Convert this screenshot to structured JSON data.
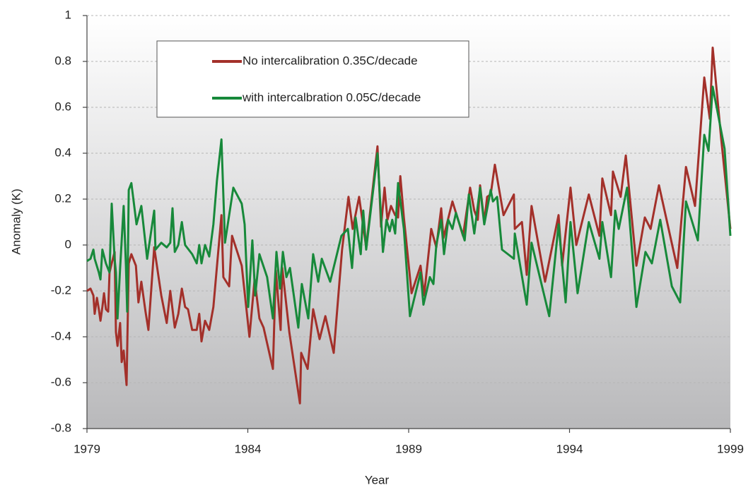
{
  "chart_data": {
    "type": "line",
    "xlabel": "Year",
    "ylabel": "Anomaly (K)",
    "xlim": [
      1979,
      1999
    ],
    "xticks": [
      1979,
      1984,
      1989,
      1994,
      1999
    ],
    "ylim": [
      -0.8,
      1
    ],
    "yticks": [
      -0.8,
      -0.6,
      -0.4,
      -0.2,
      0,
      0.2,
      0.4,
      0.6,
      0.8,
      1
    ],
    "grid": true,
    "legend": "top",
    "series": [
      {
        "name": "No intercalibration 0.35C/decade",
        "color": "#a3302a",
        "x": [
          1979.0,
          1979.11,
          1979.2,
          1979.24,
          1979.31,
          1979.37,
          1979.42,
          1979.48,
          1979.53,
          1979.59,
          1979.66,
          1979.7,
          1979.77,
          1979.86,
          1979.9,
          1979.95,
          1980.03,
          1980.08,
          1980.14,
          1980.23,
          1980.3,
          1980.38,
          1980.52,
          1980.6,
          1980.69,
          1980.82,
          1980.91,
          1981.09,
          1981.31,
          1981.48,
          1981.59,
          1981.73,
          1981.84,
          1981.95,
          1982.05,
          1982.14,
          1982.27,
          1982.41,
          1982.49,
          1982.56,
          1982.67,
          1982.8,
          1982.93,
          1983.18,
          1983.24,
          1983.42,
          1983.51,
          1983.81,
          1984.05,
          1984.21,
          1984.36,
          1984.49,
          1984.78,
          1984.87,
          1985.02,
          1985.07,
          1985.29,
          1985.62,
          1985.66,
          1985.86,
          1986.03,
          1986.23,
          1986.41,
          1986.67,
          1986.93,
          1987.13,
          1987.26,
          1987.46,
          1987.68,
          1988.03,
          1988.14,
          1988.25,
          1988.34,
          1988.45,
          1988.58,
          1988.67,
          1988.74,
          1988.85,
          1989.09,
          1989.37,
          1989.48,
          1989.7,
          1989.86,
          1990.01,
          1990.08,
          1990.36,
          1990.69,
          1990.91,
          1991.04,
          1991.15,
          1991.22,
          1991.35,
          1991.44,
          1991.55,
          1991.68,
          1991.95,
          1992.27,
          1992.3,
          1992.52,
          1992.67,
          1992.82,
          1993.24,
          1993.66,
          1993.77,
          1994.03,
          1994.21,
          1994.6,
          1994.93,
          1995.02,
          1995.29,
          1995.35,
          1995.59,
          1995.75,
          1996.08,
          1996.34,
          1996.52,
          1996.78,
          1997.35,
          1997.62,
          1997.9,
          1998.19,
          1998.36,
          1998.45,
          1998.71,
          1999.0
        ],
        "values": [
          -0.2,
          -0.19,
          -0.22,
          -0.3,
          -0.23,
          -0.28,
          -0.33,
          -0.27,
          -0.21,
          -0.28,
          -0.29,
          -0.12,
          -0.08,
          -0.03,
          -0.38,
          -0.44,
          -0.34,
          -0.51,
          -0.46,
          -0.61,
          -0.08,
          -0.04,
          -0.09,
          -0.25,
          -0.16,
          -0.29,
          -0.37,
          -0.01,
          -0.22,
          -0.34,
          -0.2,
          -0.36,
          -0.3,
          -0.19,
          -0.27,
          -0.28,
          -0.37,
          -0.37,
          -0.3,
          -0.42,
          -0.33,
          -0.37,
          -0.27,
          0.13,
          -0.14,
          -0.18,
          0.04,
          -0.09,
          -0.4,
          -0.15,
          -0.32,
          -0.36,
          -0.54,
          -0.11,
          -0.37,
          -0.1,
          -0.38,
          -0.69,
          -0.47,
          -0.54,
          -0.28,
          -0.41,
          -0.31,
          -0.47,
          -0.02,
          0.21,
          0.07,
          0.21,
          -0.01,
          0.43,
          0.08,
          0.25,
          0.11,
          0.17,
          0.13,
          0.12,
          0.3,
          0.12,
          -0.21,
          -0.09,
          -0.22,
          0.07,
          -0.01,
          0.16,
          0.03,
          0.19,
          0.04,
          0.25,
          0.15,
          0.11,
          0.26,
          0.1,
          0.21,
          0.22,
          0.35,
          0.13,
          0.22,
          0.07,
          0.1,
          -0.13,
          0.17,
          -0.16,
          0.13,
          -0.09,
          0.25,
          0.0,
          0.22,
          0.04,
          0.29,
          0.13,
          0.32,
          0.21,
          0.39,
          -0.09,
          0.12,
          0.07,
          0.26,
          -0.1,
          0.34,
          0.17,
          0.73,
          0.55,
          0.86,
          0.47,
          0.07
        ]
      },
      {
        "name": "with intercalbration 0.05C/decade",
        "color": "#17893a",
        "x": [
          1979.0,
          1979.11,
          1979.2,
          1979.24,
          1979.37,
          1979.42,
          1979.48,
          1979.59,
          1979.7,
          1979.77,
          1979.86,
          1979.9,
          1979.95,
          1980.03,
          1980.14,
          1980.21,
          1980.25,
          1980.3,
          1980.38,
          1980.54,
          1980.69,
          1980.87,
          1981.09,
          1981.13,
          1981.31,
          1981.48,
          1981.59,
          1981.66,
          1981.73,
          1981.84,
          1981.95,
          1982.05,
          1982.27,
          1982.41,
          1982.49,
          1982.56,
          1982.67,
          1982.8,
          1982.93,
          1983.04,
          1983.18,
          1983.29,
          1983.55,
          1983.81,
          1983.9,
          1984.01,
          1984.14,
          1984.23,
          1984.36,
          1984.6,
          1984.78,
          1984.89,
          1985.0,
          1985.09,
          1985.2,
          1985.31,
          1985.57,
          1985.68,
          1985.88,
          1986.03,
          1986.19,
          1986.3,
          1986.56,
          1986.91,
          1987.11,
          1987.24,
          1987.35,
          1987.51,
          1987.59,
          1987.68,
          1988.03,
          1988.2,
          1988.31,
          1988.41,
          1988.49,
          1988.58,
          1988.67,
          1988.85,
          1989.04,
          1989.37,
          1989.46,
          1989.66,
          1989.77,
          1989.86,
          1990.01,
          1990.1,
          1990.23,
          1990.36,
          1990.47,
          1990.74,
          1990.87,
          1991.04,
          1991.22,
          1991.35,
          1991.55,
          1991.62,
          1991.75,
          1991.9,
          1992.27,
          1992.3,
          1992.67,
          1992.82,
          1993.37,
          1993.66,
          1993.88,
          1994.03,
          1994.25,
          1994.6,
          1994.93,
          1995.02,
          1995.29,
          1995.42,
          1995.53,
          1995.79,
          1996.08,
          1996.36,
          1996.56,
          1996.82,
          1997.18,
          1997.44,
          1997.62,
          1997.99,
          1998.19,
          1998.32,
          1998.45,
          1998.82,
          1999.0
        ],
        "values": [
          -0.07,
          -0.06,
          -0.02,
          -0.06,
          -0.12,
          -0.15,
          -0.02,
          -0.08,
          -0.12,
          0.18,
          -0.06,
          -0.12,
          -0.32,
          -0.1,
          0.17,
          -0.09,
          -0.29,
          0.24,
          0.27,
          0.09,
          0.17,
          -0.06,
          0.15,
          -0.02,
          0.01,
          -0.01,
          0.01,
          0.16,
          -0.03,
          0.0,
          0.1,
          0.0,
          -0.04,
          -0.08,
          0.0,
          -0.08,
          0.0,
          -0.05,
          0.09,
          0.28,
          0.46,
          0.01,
          0.25,
          0.18,
          0.09,
          -0.27,
          0.02,
          -0.22,
          -0.04,
          -0.14,
          -0.32,
          -0.03,
          -0.19,
          -0.03,
          -0.14,
          -0.1,
          -0.36,
          -0.17,
          -0.32,
          -0.04,
          -0.16,
          -0.06,
          -0.16,
          0.04,
          0.07,
          -0.1,
          0.12,
          -0.04,
          0.15,
          -0.02,
          0.4,
          -0.03,
          0.11,
          0.06,
          0.11,
          0.05,
          0.27,
          0.07,
          -0.31,
          -0.12,
          -0.26,
          -0.14,
          -0.17,
          0.0,
          0.11,
          -0.04,
          0.11,
          0.07,
          0.14,
          0.02,
          0.22,
          0.05,
          0.25,
          0.09,
          0.24,
          0.19,
          0.21,
          -0.02,
          -0.06,
          0.05,
          -0.26,
          0.01,
          -0.31,
          0.09,
          -0.25,
          0.1,
          -0.21,
          0.1,
          -0.06,
          0.1,
          -0.14,
          0.15,
          0.07,
          0.25,
          -0.27,
          -0.03,
          -0.08,
          0.11,
          -0.18,
          -0.25,
          0.19,
          0.02,
          0.48,
          0.41,
          0.69,
          0.42,
          0.04
        ]
      }
    ]
  }
}
